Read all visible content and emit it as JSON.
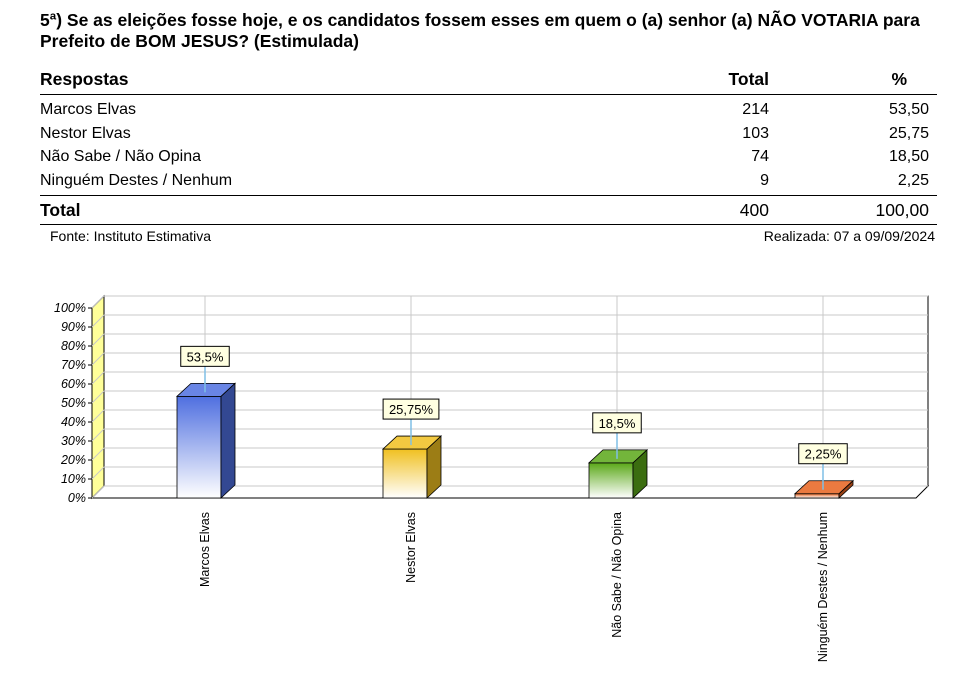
{
  "question": "5ª) Se as eleições fosse hoje, e os candidatos fossem esses em quem o (a) senhor (a) NÃO VOTARIA para Prefeito de BOM JESUS? (Estimulada)",
  "table": {
    "headers": [
      "Respostas",
      "Total",
      "%"
    ],
    "rows": [
      {
        "label": "Marcos Elvas",
        "total": "214",
        "pct": "53,50"
      },
      {
        "label": "Nestor Elvas",
        "total": "103",
        "pct": "25,75"
      },
      {
        "label": "Não Sabe / Não Opina",
        "total": "74",
        "pct": "18,50"
      },
      {
        "label": "Ninguém Destes / Nenhum",
        "total": "9",
        "pct": "2,25"
      }
    ],
    "total_row": {
      "label": "Total",
      "total": "400",
      "pct": "100,00"
    }
  },
  "footer": {
    "source": "Fonte: Instituto Estimativa",
    "date": "Realizada: 07 a 09/09/2024"
  },
  "chart_data": {
    "type": "bar",
    "style": "3d",
    "categories": [
      "Marcos Elvas",
      "Nestor Elvas",
      "Não Sabe / Não Opina",
      "Ninguém Destes / Nenhum"
    ],
    "values": [
      53.5,
      25.75,
      18.5,
      2.25
    ],
    "data_labels": [
      "53,5%",
      "25,75%",
      "18,5%",
      "2,25%"
    ],
    "colors": [
      "#4f6fe0",
      "#f0c020",
      "#5aa818",
      "#e8621e"
    ],
    "ylim": [
      0,
      100
    ],
    "yticks": [
      "0%",
      "10%",
      "20%",
      "30%",
      "40%",
      "50%",
      "60%",
      "70%",
      "80%",
      "90%",
      "100%"
    ],
    "grid": true,
    "wall_color": "#ffff99"
  }
}
